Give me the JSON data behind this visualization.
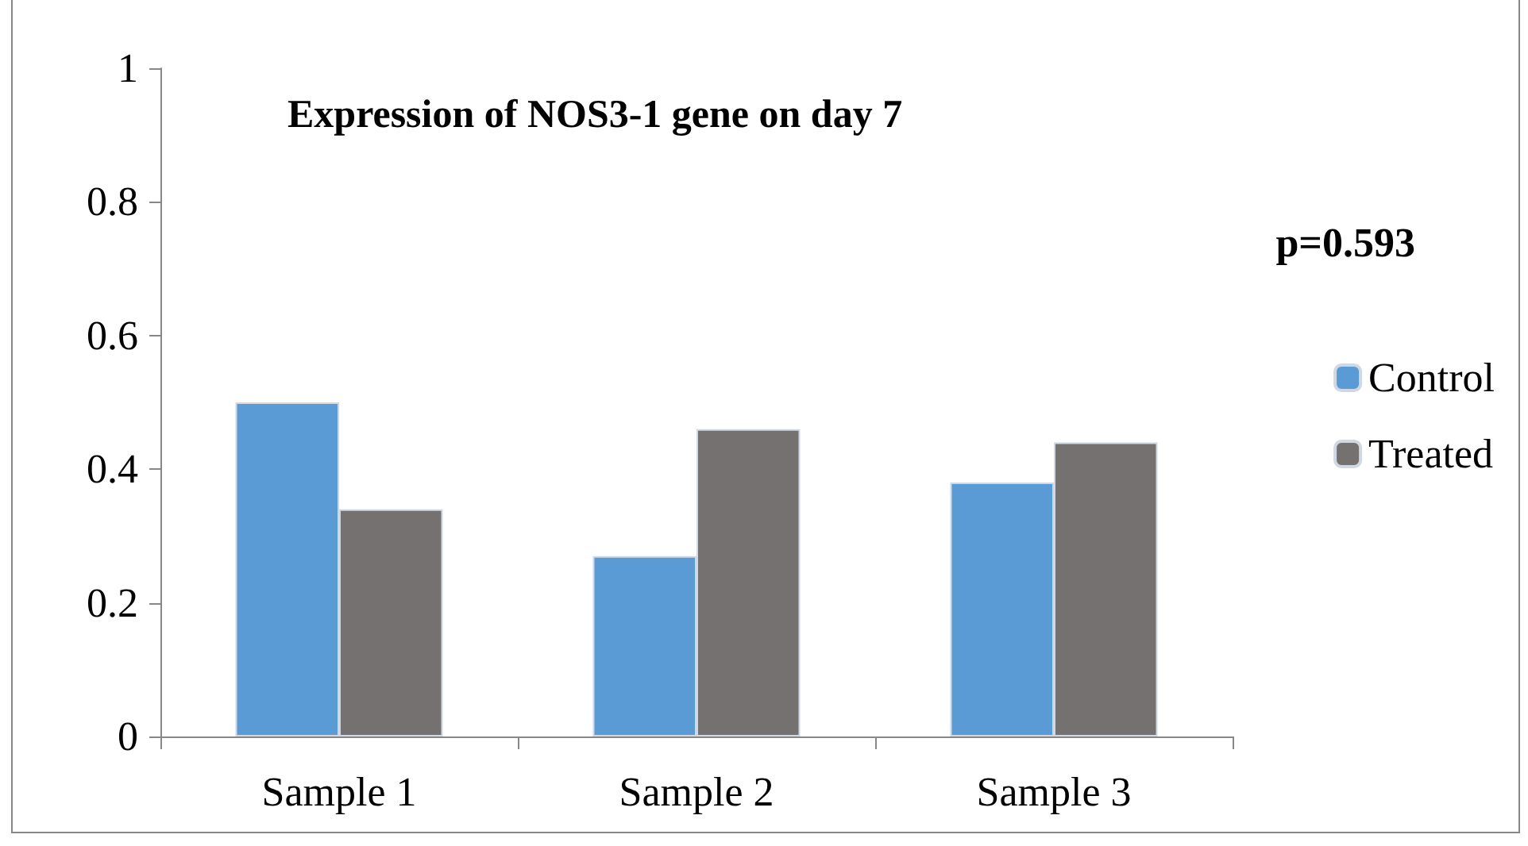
{
  "chart_data": {
    "type": "bar",
    "title": "Expression of NOS3-1 gene on day 7",
    "categories": [
      "Sample 1",
      "Sample 2",
      "Sample 3"
    ],
    "series": [
      {
        "name": "Control",
        "color": "#5b9bd5",
        "values": [
          0.5,
          0.27,
          0.38
        ]
      },
      {
        "name": "Treated",
        "color": "#767171",
        "values": [
          0.34,
          0.46,
          0.44
        ]
      }
    ],
    "ylim": [
      0,
      1
    ],
    "yticks": [
      0,
      0.2,
      0.4,
      0.6,
      0.8,
      1
    ],
    "grid": false,
    "legend": "right",
    "annotations": [
      "p=0.593"
    ]
  }
}
